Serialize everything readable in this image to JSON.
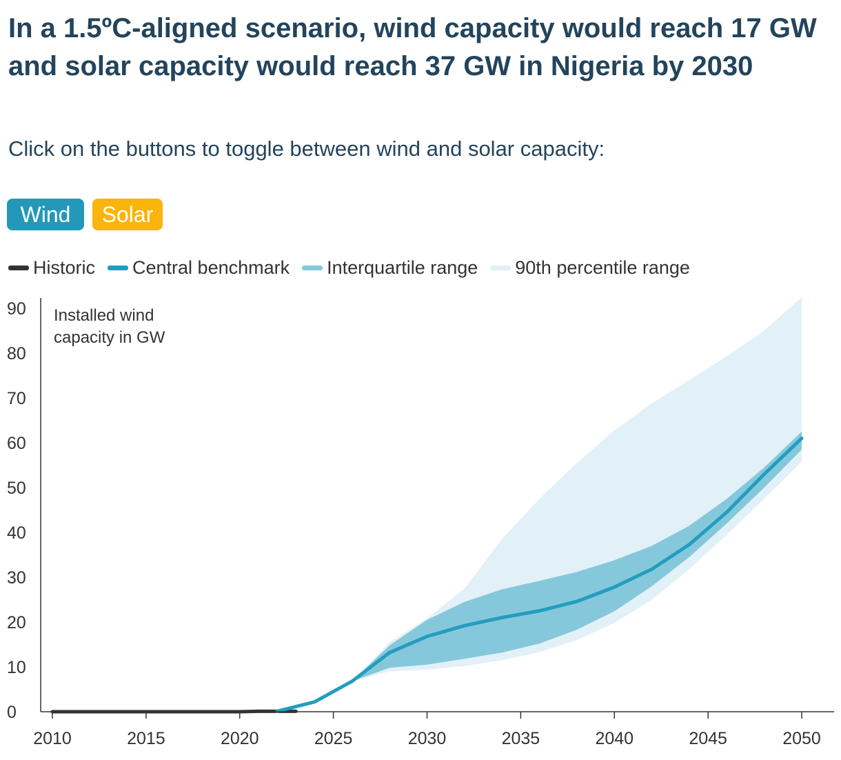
{
  "header": {
    "title": "In a 1.5ºC-aligned scenario, wind capacity would reach 17 GW and solar capacity would reach 37 GW in Nigeria by 2030",
    "subtitle": "Click on the buttons to toggle between wind and solar capacity:"
  },
  "buttons": {
    "wind_label": "Wind",
    "solar_label": "Solar",
    "active": "Wind"
  },
  "legend": {
    "historic": "Historic",
    "central": "Central benchmark",
    "iqr": "Interquartile range",
    "p90": "90th percentile range"
  },
  "colors": {
    "historic": "#333333",
    "central": "#239dbf",
    "iqr": "#86c8db",
    "p90": "#e2f1f7",
    "wind_button": "#2398b8",
    "solar_button": "#fbb40a",
    "title": "#23445c"
  },
  "chart_data": {
    "type": "area",
    "title": "",
    "note": "Installed wind capacity in GW",
    "xlabel": "",
    "ylabel": "",
    "xlim": [
      2010,
      2051
    ],
    "ylim": [
      0,
      92
    ],
    "x_ticks": [
      2010,
      2015,
      2020,
      2025,
      2030,
      2035,
      2040,
      2045,
      2050
    ],
    "y_ticks": [
      0,
      10,
      20,
      30,
      40,
      50,
      60,
      70,
      80,
      90
    ],
    "grid": false,
    "legend_position": "top",
    "series": [
      {
        "name": "Historic",
        "kind": "line",
        "x": [
          2010,
          2011,
          2012,
          2013,
          2014,
          2015,
          2016,
          2017,
          2018,
          2019,
          2020,
          2021,
          2022,
          2023
        ],
        "values": [
          0,
          0,
          0,
          0,
          0,
          0,
          0,
          0,
          0,
          0,
          0,
          0.1,
          0.1,
          0.1
        ]
      },
      {
        "name": "Central benchmark",
        "kind": "line",
        "x": [
          2022,
          2024,
          2026,
          2028,
          2030,
          2032,
          2034,
          2036,
          2038,
          2040,
          2042,
          2044,
          2046,
          2048,
          2050
        ],
        "values": [
          0.1,
          2.2,
          6.8,
          13.2,
          16.8,
          19.2,
          21.0,
          22.5,
          24.6,
          27.8,
          31.8,
          37.3,
          44.5,
          53.0,
          61.0
        ]
      },
      {
        "name": "Interquartile range",
        "kind": "band",
        "x": [
          2026,
          2028,
          2030,
          2032,
          2034,
          2036,
          2038,
          2040,
          2042,
          2044,
          2046,
          2048,
          2050
        ],
        "low": [
          6.8,
          9.8,
          10.5,
          11.8,
          13.2,
          15.2,
          18.3,
          22.4,
          28.0,
          34.5,
          42.0,
          50.0,
          58.5
        ],
        "high": [
          6.8,
          14.8,
          20.5,
          24.5,
          27.3,
          29.2,
          31.2,
          33.8,
          37.0,
          41.5,
          47.5,
          54.5,
          62.5
        ]
      },
      {
        "name": "90th percentile range",
        "kind": "band",
        "x": [
          2026,
          2028,
          2030,
          2032,
          2034,
          2036,
          2038,
          2040,
          2042,
          2044,
          2046,
          2048,
          2050
        ],
        "low": [
          6.8,
          9.0,
          9.4,
          10.2,
          11.5,
          13.3,
          16.0,
          19.8,
          25.0,
          31.8,
          39.5,
          47.5,
          55.8
        ],
        "high": [
          6.8,
          15.5,
          20.8,
          27.5,
          38.5,
          47.5,
          55.5,
          62.8,
          68.8,
          74.0,
          79.3,
          85.0,
          92.5
        ]
      }
    ]
  }
}
